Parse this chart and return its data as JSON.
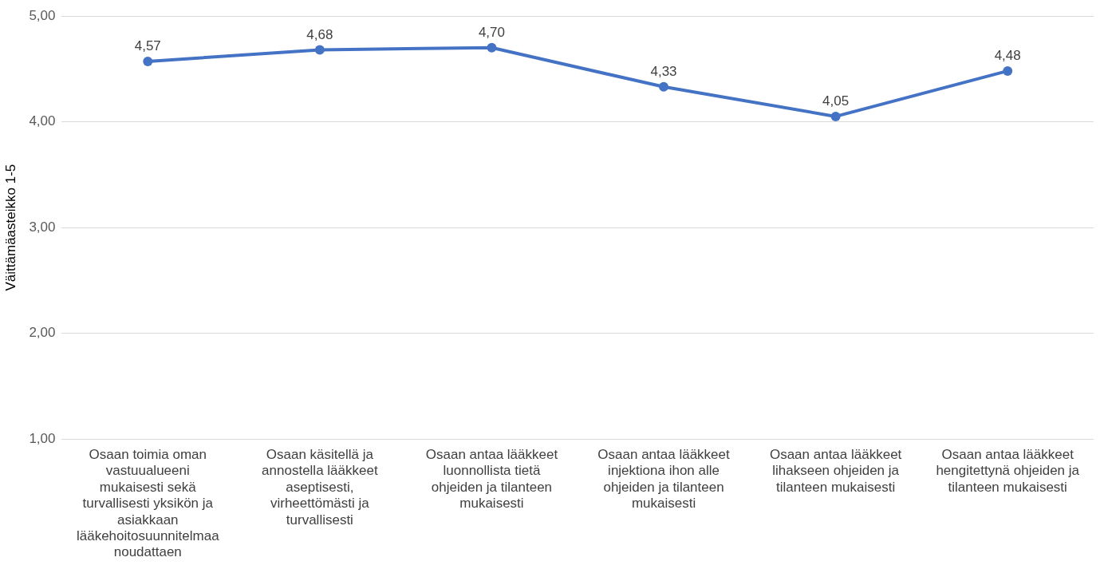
{
  "chart_data": {
    "type": "line",
    "ylabel": "Väittämäasteikko 1-5",
    "categories": [
      "Osaan toimia oman vastuualueeni mukaisesti sekä turvallisesti yksikön ja asiakkaan lääkehoitosuunnitelmaa noudattaen",
      "Osaan käsitellä ja annostella lääkkeet aseptisesti, virheettömästi ja turvallisesti",
      "Osaan antaa lääkkeet luonnollista tietä ohjeiden ja tilanteen mukaisesti",
      "Osaan antaa lääkkeet injektiona ihon alle ohjeiden ja tilanteen mukaisesti",
      "Osaan antaa lääkkeet lihakseen ohjeiden ja tilanteen mukaisesti",
      "Osaan antaa lääkkeet hengitettynä ohjeiden ja tilanteen mukaisesti"
    ],
    "series": [
      {
        "color": "#4472c4",
        "values": [
          4.57,
          4.68,
          4.7,
          4.33,
          4.05,
          4.48
        ],
        "value_labels": [
          "4,57",
          "4,68",
          "4,70",
          "4,33",
          "4,05",
          "4,48"
        ]
      }
    ],
    "ylim": [
      1,
      5
    ],
    "yticks": [
      {
        "value": 1,
        "label": "1,00"
      },
      {
        "value": 2,
        "label": "2,00"
      },
      {
        "value": 3,
        "label": "3,00"
      },
      {
        "value": 4,
        "label": "4,00"
      },
      {
        "value": 5,
        "label": "5,00"
      }
    ],
    "grid": "y",
    "legend": false,
    "marker": "circle",
    "line_style": "solid"
  }
}
